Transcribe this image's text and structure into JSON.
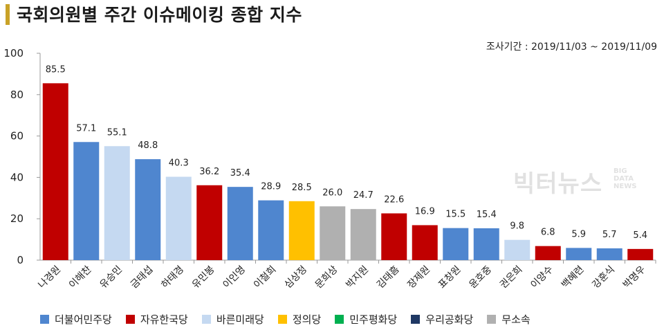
{
  "header": {
    "title": "국회의원별 주간 이슈메이킹 종합 지수",
    "period": "조사기간 : 2019/11/03 ~ 2019/11/09",
    "accent_color": "#c9a227"
  },
  "watermark": {
    "main": "빅터뉴스",
    "sub": [
      "BIG",
      "DATA",
      "NEWS"
    ]
  },
  "legend": [
    {
      "name": "더불어민주당",
      "color": "#4f86cf"
    },
    {
      "name": "자유한국당",
      "color": "#c00000"
    },
    {
      "name": "바른미래당",
      "color": "#c5d9f1"
    },
    {
      "name": "정의당",
      "color": "#ffc000"
    },
    {
      "name": "민주평화당",
      "color": "#00b050"
    },
    {
      "name": "우리공화당",
      "color": "#1f3864"
    },
    {
      "name": "무소속",
      "color": "#b0b0b0"
    }
  ],
  "chart_data": {
    "type": "bar",
    "title": "국회의원별 주간 이슈메이킹 종합 지수",
    "xlabel": "",
    "ylabel": "",
    "ylim": [
      0,
      100
    ],
    "yticks": [
      0,
      20,
      40,
      60,
      80,
      100
    ],
    "grid": false,
    "legend_position": "bottom",
    "categories": [
      "나경원",
      "이해찬",
      "유승민",
      "금태섭",
      "하태경",
      "유민봉",
      "이인영",
      "이철희",
      "심상정",
      "문희상",
      "박지원",
      "김태흠",
      "장제원",
      "표창원",
      "윤호중",
      "권은희",
      "이양수",
      "백혜련",
      "강훈식",
      "박명우"
    ],
    "values": [
      85.5,
      57.1,
      55.1,
      48.8,
      40.3,
      36.2,
      35.4,
      28.9,
      28.5,
      26.0,
      24.7,
      22.6,
      16.9,
      15.5,
      15.4,
      9.8,
      6.8,
      5.9,
      5.7,
      5.4
    ],
    "value_labels": [
      "85.5",
      "57.1",
      "55.1",
      "48.8",
      "40.3",
      "36.2",
      "35.4",
      "28.9",
      "28.5",
      "26.0",
      "24.7",
      "22.6",
      "16.9",
      "15.5",
      "15.4",
      "9.8",
      "6.8",
      "5.9",
      "5.7",
      "5.4"
    ],
    "party": [
      "자유한국당",
      "더불어민주당",
      "바른미래당",
      "더불어민주당",
      "바른미래당",
      "자유한국당",
      "더불어민주당",
      "더불어민주당",
      "정의당",
      "무소속",
      "무소속",
      "자유한국당",
      "자유한국당",
      "더불어민주당",
      "더불어민주당",
      "바른미래당",
      "자유한국당",
      "더불어민주당",
      "더불어민주당",
      "자유한국당"
    ]
  }
}
